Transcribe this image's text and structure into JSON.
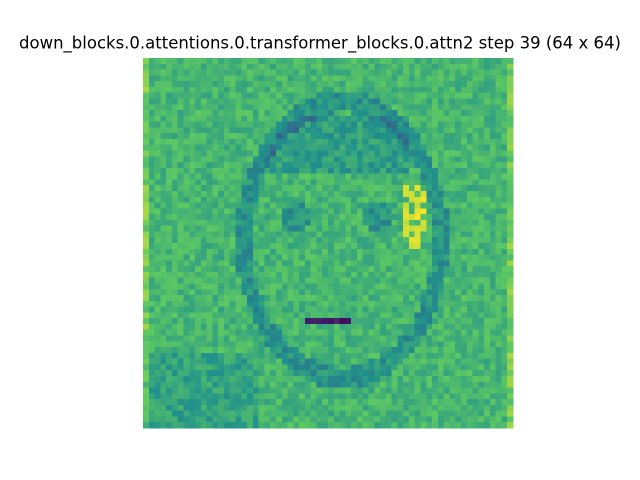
{
  "chart_data": {
    "type": "image",
    "title": "down_blocks.0.attentions.0.transformer_blocks.0.attn2 step 39 (64 x 64)"
  }
}
